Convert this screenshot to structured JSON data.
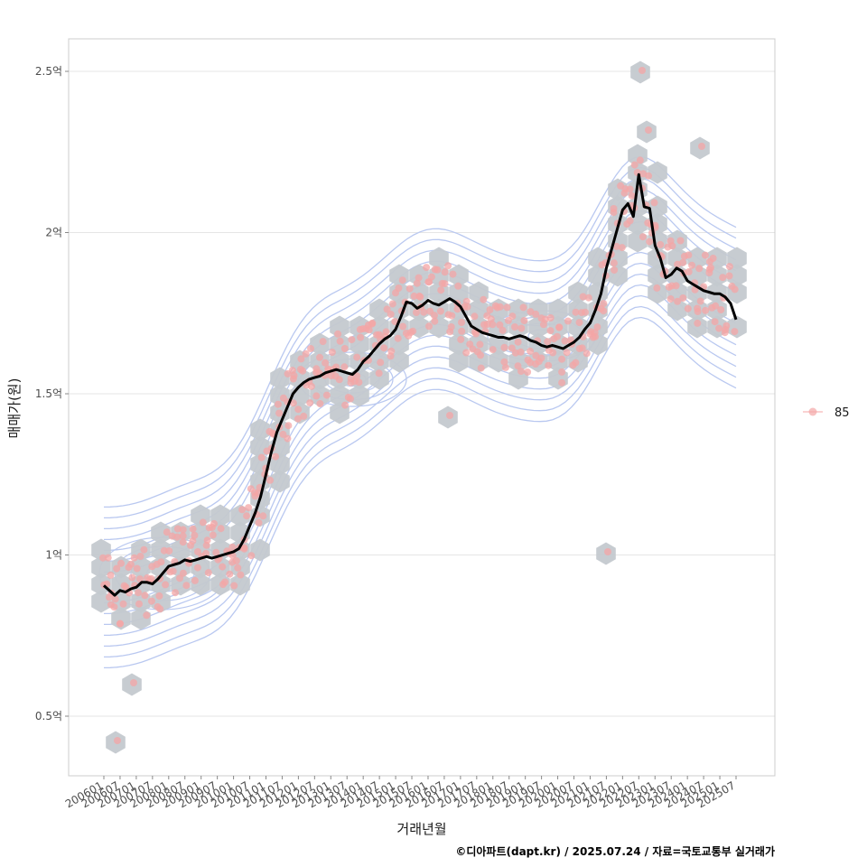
{
  "chart_data": {
    "type": "scatter",
    "title": "",
    "xlabel": "거래년월",
    "ylabel": "매매가(원)",
    "caption": "©디아파트(dapt.kr) / 2025.07.24 / 자료=국토교통부 실거래가",
    "x_range": [
      "2006-01",
      "2025-07"
    ],
    "ylim": [
      32000000,
      262000000
    ],
    "y_ticks": [
      {
        "value": 50000000,
        "label": "0.5억"
      },
      {
        "value": 100000000,
        "label": "1억"
      },
      {
        "value": 150000000,
        "label": "1.5억"
      },
      {
        "value": 200000000,
        "label": "2억"
      },
      {
        "value": 250000000,
        "label": "2.5억"
      }
    ],
    "x_ticks": [
      "200601",
      "200607",
      "200701",
      "200707",
      "200801",
      "200807",
      "200901",
      "200907",
      "201001",
      "201007",
      "201101",
      "201107",
      "201201",
      "201207",
      "201301",
      "201307",
      "201401",
      "201407",
      "201501",
      "201507",
      "201601",
      "201607",
      "201701",
      "201707",
      "201801",
      "201807",
      "201901",
      "201907",
      "202001",
      "202007",
      "202101",
      "202107",
      "202201",
      "202207",
      "202301",
      "202307",
      "202401",
      "202407",
      "202501",
      "202507"
    ],
    "grid": true,
    "legend": {
      "position": "right",
      "entries": [
        {
          "label": "85",
          "color": "#f4a6a6"
        }
      ]
    },
    "colors": {
      "points": "#f4a6a6",
      "hexbin": "#c4c9cf",
      "density_contour": "#b9c8f0",
      "trend_line": "#000000",
      "panel_border": "#cccccc",
      "grid": "#e5e5e5"
    },
    "series": [
      {
        "name": "85",
        "kind": "trend",
        "points": [
          [
            "2006-01",
            90.5
          ],
          [
            "2006-03",
            89
          ],
          [
            "2006-05",
            87.5
          ],
          [
            "2006-07",
            89
          ],
          [
            "2006-09",
            88.5
          ],
          [
            "2006-11",
            89.5
          ],
          [
            "2007-01",
            90
          ],
          [
            "2007-03",
            91.5
          ],
          [
            "2007-05",
            91.5
          ],
          [
            "2007-07",
            91
          ],
          [
            "2007-09",
            92.5
          ],
          [
            "2007-11",
            94.5
          ],
          [
            "2008-01",
            96.5
          ],
          [
            "2008-03",
            97
          ],
          [
            "2008-05",
            97.5
          ],
          [
            "2008-07",
            98.5
          ],
          [
            "2008-09",
            98
          ],
          [
            "2008-11",
            98.5
          ],
          [
            "2009-01",
            99
          ],
          [
            "2009-03",
            99.5
          ],
          [
            "2009-05",
            99
          ],
          [
            "2009-07",
            99.5
          ],
          [
            "2009-09",
            100
          ],
          [
            "2009-11",
            100.5
          ],
          [
            "2010-01",
            101
          ],
          [
            "2010-03",
            102
          ],
          [
            "2010-05",
            105
          ],
          [
            "2010-07",
            109
          ],
          [
            "2010-09",
            113
          ],
          [
            "2010-11",
            118
          ],
          [
            "2011-01",
            125
          ],
          [
            "2011-03",
            132
          ],
          [
            "2011-05",
            138
          ],
          [
            "2011-07",
            142
          ],
          [
            "2011-09",
            146
          ],
          [
            "2011-11",
            150
          ],
          [
            "2012-01",
            152
          ],
          [
            "2012-03",
            153.5
          ],
          [
            "2012-05",
            154.5
          ],
          [
            "2012-07",
            155
          ],
          [
            "2012-09",
            155.5
          ],
          [
            "2012-11",
            156.5
          ],
          [
            "2013-01",
            157
          ],
          [
            "2013-03",
            157.5
          ],
          [
            "2013-05",
            157
          ],
          [
            "2013-07",
            156.5
          ],
          [
            "2013-09",
            156
          ],
          [
            "2013-11",
            157.5
          ],
          [
            "2014-01",
            160
          ],
          [
            "2014-03",
            161.5
          ],
          [
            "2014-05",
            163.5
          ],
          [
            "2014-07",
            165.5
          ],
          [
            "2014-09",
            167
          ],
          [
            "2014-11",
            168
          ],
          [
            "2015-01",
            170
          ],
          [
            "2015-03",
            174
          ],
          [
            "2015-05",
            178.5
          ],
          [
            "2015-07",
            178
          ],
          [
            "2015-09",
            176.5
          ],
          [
            "2015-11",
            177.5
          ],
          [
            "2016-01",
            179
          ],
          [
            "2016-03",
            178
          ],
          [
            "2016-05",
            177.5
          ],
          [
            "2016-07",
            178.5
          ],
          [
            "2016-09",
            179.5
          ],
          [
            "2016-11",
            178.5
          ],
          [
            "2017-01",
            177
          ],
          [
            "2017-03",
            174
          ],
          [
            "2017-05",
            171
          ],
          [
            "2017-07",
            170
          ],
          [
            "2017-09",
            169
          ],
          [
            "2017-11",
            168.5
          ],
          [
            "2018-01",
            168
          ],
          [
            "2018-03",
            167.5
          ],
          [
            "2018-05",
            167.5
          ],
          [
            "2018-07",
            167
          ],
          [
            "2018-09",
            167.5
          ],
          [
            "2018-11",
            168
          ],
          [
            "2019-01",
            167.5
          ],
          [
            "2019-03",
            166.5
          ],
          [
            "2019-05",
            166
          ],
          [
            "2019-07",
            165
          ],
          [
            "2019-09",
            164.5
          ],
          [
            "2019-11",
            165
          ],
          [
            "2020-01",
            164.5
          ],
          [
            "2020-03",
            164
          ],
          [
            "2020-05",
            165
          ],
          [
            "2020-07",
            166
          ],
          [
            "2020-09",
            167.5
          ],
          [
            "2020-11",
            170
          ],
          [
            "2021-01",
            172
          ],
          [
            "2021-03",
            176
          ],
          [
            "2021-05",
            181
          ],
          [
            "2021-07",
            189
          ],
          [
            "2021-09",
            195
          ],
          [
            "2021-11",
            201
          ],
          [
            "2022-01",
            207
          ],
          [
            "2022-03",
            209
          ],
          [
            "2022-05",
            205
          ],
          [
            "2022-07",
            218
          ],
          [
            "2022-09",
            208
          ],
          [
            "2022-11",
            207.5
          ],
          [
            "2023-01",
            196
          ],
          [
            "2023-03",
            192
          ],
          [
            "2023-05",
            186
          ],
          [
            "2023-07",
            187
          ],
          [
            "2023-09",
            189
          ],
          [
            "2023-11",
            188
          ],
          [
            "2024-01",
            185
          ],
          [
            "2024-03",
            184
          ],
          [
            "2024-05",
            183
          ],
          [
            "2024-07",
            182
          ],
          [
            "2024-09",
            181.5
          ],
          [
            "2024-11",
            181
          ],
          [
            "2025-01",
            181
          ],
          [
            "2025-03",
            180
          ],
          [
            "2025-05",
            178
          ],
          [
            "2025-07",
            173
          ]
        ],
        "unit": "백만원"
      }
    ]
  }
}
